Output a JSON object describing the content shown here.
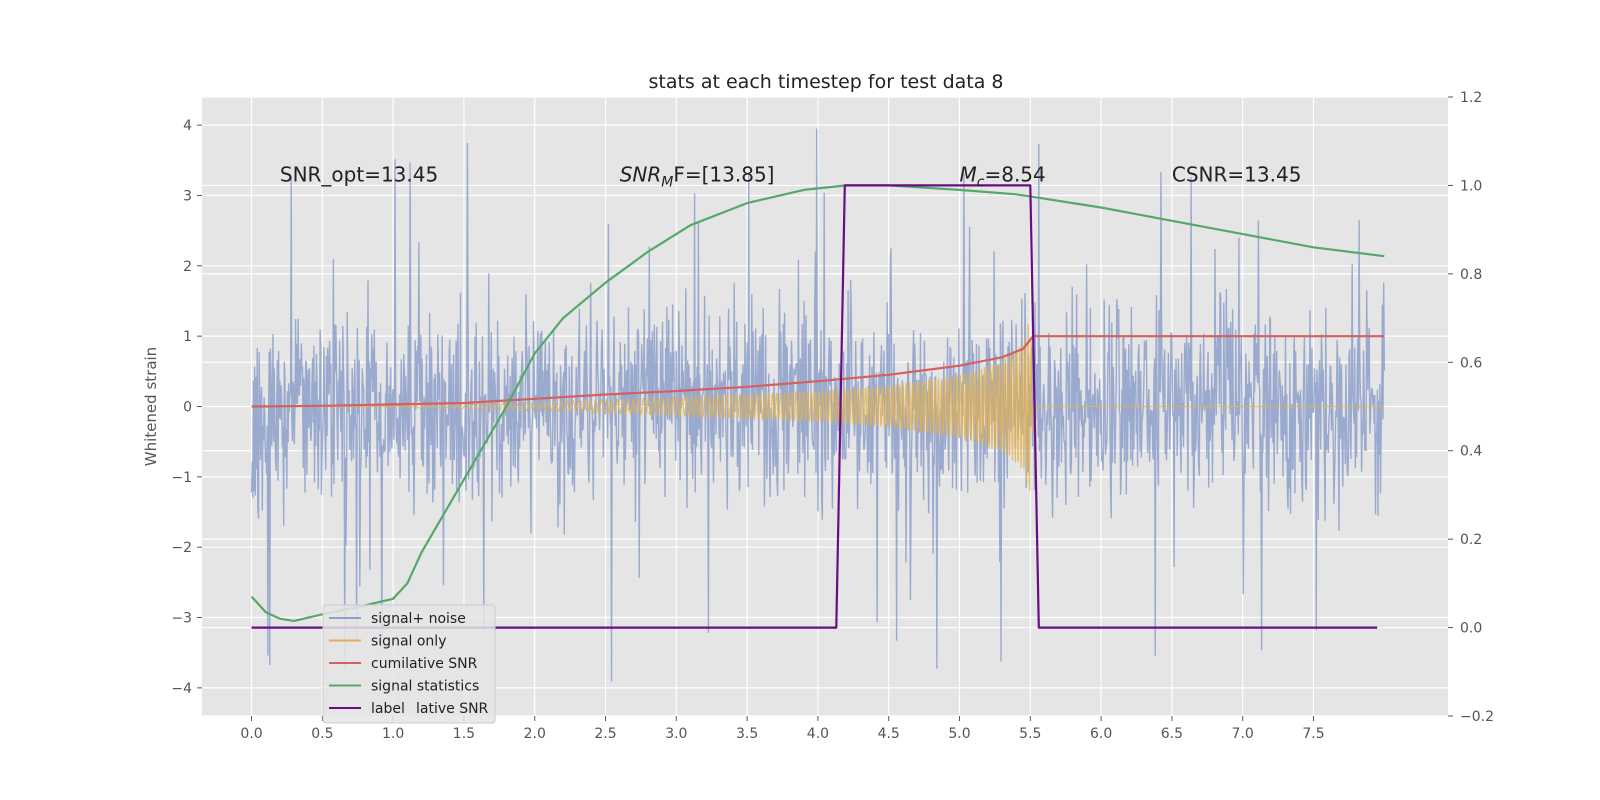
{
  "chart_data": {
    "type": "line",
    "title": "stats at each timestep for test data 8",
    "ylabel": "Whitened strain",
    "xlim": [
      -0.35,
      8.45
    ],
    "ylim": [
      -4.4,
      4.4
    ],
    "y2lim": [
      -0.2,
      1.2
    ],
    "xticks": [
      0.0,
      0.5,
      1.0,
      1.5,
      2.0,
      2.5,
      3.0,
      3.5,
      4.0,
      4.5,
      5.0,
      5.5,
      6.0,
      6.5,
      7.0,
      7.5
    ],
    "xtick_labels": [
      "0.0",
      "0.5",
      "1.0",
      "1.5",
      "2.0",
      "2.5",
      "3.0",
      "3.5",
      "4.0",
      "4.5",
      "5.0",
      "5.5",
      "6.0",
      "6.5",
      "7.0",
      "7.5"
    ],
    "yticks": [
      -4,
      -3,
      -2,
      -1,
      0,
      1,
      2,
      3,
      4
    ],
    "ytick_labels": [
      "−4",
      "−3",
      "−2",
      "−1",
      "0",
      "1",
      "2",
      "3",
      "4"
    ],
    "y2ticks": [
      -0.2,
      0.0,
      0.2,
      0.4,
      0.6,
      0.8,
      1.0,
      1.2
    ],
    "y2tick_labels": [
      "−0.2",
      "0.0",
      "0.2",
      "0.4",
      "0.6",
      "0.8",
      "1.0",
      "1.2"
    ],
    "grid": true,
    "legend_position": "lower-left",
    "annotations": [
      {
        "text": "SNR_opt=13.45",
        "x": 0.2,
        "y": 3.2
      },
      {
        "text": "SNR_MF=[13.85]",
        "x": 2.6,
        "y": 3.2
      },
      {
        "text": "M_c=8.54",
        "x": 5.0,
        "y": 3.2
      },
      {
        "text": "CSNR=13.45",
        "x": 6.5,
        "y": 3.2
      }
    ],
    "series": [
      {
        "name": "signal+ noise",
        "axis": "left",
        "color": "#8da0cb",
        "x_range": [
          0.0,
          8.0
        ],
        "approx_envelope": {
          "typical_max": 2.0,
          "typical_min": -2.0,
          "peak_max": 4.0,
          "peak_min": -4.0
        }
      },
      {
        "name": "signal only",
        "axis": "left",
        "color": "#e3b04b",
        "x_range": [
          0.0,
          8.0
        ],
        "envelope": {
          "x": [
            1.0,
            2.0,
            3.0,
            4.0,
            4.5,
            5.0,
            5.3,
            5.45,
            5.5,
            5.52
          ],
          "amp": [
            0.01,
            0.06,
            0.13,
            0.22,
            0.3,
            0.45,
            0.65,
            0.9,
            1.3,
            0.0
          ]
        }
      },
      {
        "name": "cumilative SNR",
        "axis": "left",
        "color": "#d65f5f",
        "x": [
          0.0,
          0.5,
          1.0,
          1.5,
          2.0,
          2.5,
          3.0,
          3.5,
          4.0,
          4.5,
          5.0,
          5.3,
          5.45,
          5.5,
          5.52,
          8.0
        ],
        "values": [
          0.0,
          0.01,
          0.03,
          0.05,
          0.11,
          0.17,
          0.22,
          0.28,
          0.36,
          0.45,
          0.58,
          0.7,
          0.82,
          0.95,
          1.0,
          1.0
        ]
      },
      {
        "name": "signal statistics",
        "axis": "right",
        "color": "#55a868",
        "x": [
          0.0,
          0.1,
          0.2,
          0.3,
          0.5,
          0.8,
          1.0,
          1.1,
          1.2,
          1.4,
          1.6,
          1.8,
          2.0,
          2.2,
          2.5,
          2.8,
          3.1,
          3.5,
          3.9,
          4.2,
          4.5,
          5.0,
          5.4,
          5.6,
          6.0,
          6.5,
          7.0,
          7.5,
          8.0
        ],
        "values": [
          0.07,
          0.035,
          0.02,
          0.015,
          0.03,
          0.05,
          0.065,
          0.1,
          0.17,
          0.28,
          0.39,
          0.5,
          0.62,
          0.7,
          0.78,
          0.85,
          0.91,
          0.96,
          0.99,
          1.0,
          1.0,
          0.99,
          0.98,
          0.97,
          0.95,
          0.92,
          0.89,
          0.86,
          0.84
        ]
      },
      {
        "name": "label",
        "axis": "right",
        "color": "#6a0d83",
        "x": [
          0.0,
          4.13,
          4.19,
          5.5,
          5.56,
          7.95
        ],
        "values": [
          0.0,
          0.0,
          1.0,
          1.0,
          0.0,
          0.0
        ]
      }
    ],
    "legend_entries": [
      "signal+ noise",
      "signal only",
      "cumilative SNR",
      "signal statistics",
      "label"
    ],
    "legend_overflow_text": "lative SNR"
  }
}
